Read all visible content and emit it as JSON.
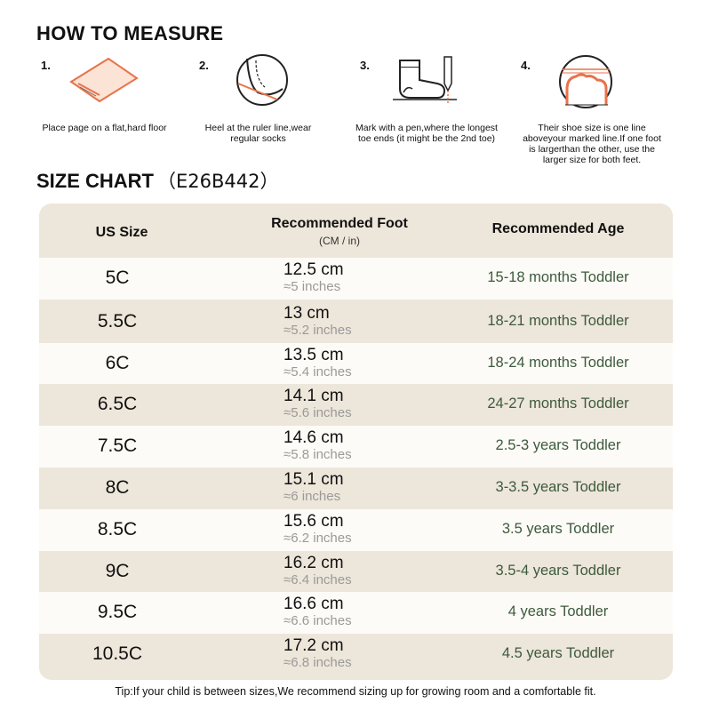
{
  "measure": {
    "title": "HOW TO MEASURE",
    "steps": [
      {
        "num": "1.",
        "text": "Place page on a flat,hard floor",
        "icon": "paper-sheet-icon"
      },
      {
        "num": "2.",
        "text": "Heel at the ruler line,wear regular socks",
        "icon": "heel-ruler-icon"
      },
      {
        "num": "3.",
        "text": "Mark with a pen,where the longest toe ends (it might be the 2nd toe)",
        "icon": "sock-pen-icon"
      },
      {
        "num": "4.",
        "text": "Their shoe size is one line aboveyour marked line.If one foot is largerthan the other, use the larger size for both feet.",
        "icon": "toe-line-icon"
      }
    ]
  },
  "chart": {
    "title": "SIZE CHART",
    "code": "（E26B442）"
  },
  "table": {
    "headers": {
      "size": "US Size",
      "foot": "Recommended Foot",
      "foot_sub": "(CM / in)",
      "age": "Recommended Age"
    },
    "rows": [
      {
        "size": "5C",
        "cm": "12.5 cm",
        "inch": "≈5 inches",
        "age": "15-18 months Toddler"
      },
      {
        "size": "5.5C",
        "cm": "13 cm",
        "inch": "≈5.2 inches",
        "age": "18-21 months Toddler"
      },
      {
        "size": "6C",
        "cm": "13.5 cm",
        "inch": "≈5.4 inches",
        "age": "18-24 months Toddler"
      },
      {
        "size": "6.5C",
        "cm": "14.1 cm",
        "inch": "≈5.6 inches",
        "age": "24-27 months Toddler"
      },
      {
        "size": "7.5C",
        "cm": "14.6 cm",
        "inch": "≈5.8 inches",
        "age": "2.5-3 years Toddler"
      },
      {
        "size": "8C",
        "cm": "15.1 cm",
        "inch": "≈6 inches",
        "age": "3-3.5 years Toddler"
      },
      {
        "size": "8.5C",
        "cm": "15.6 cm",
        "inch": "≈6.2 inches",
        "age": "3.5 years Toddler"
      },
      {
        "size": "9C",
        "cm": "16.2 cm",
        "inch": "≈6.4 inches",
        "age": "3.5-4 years Toddler"
      },
      {
        "size": "9.5C",
        "cm": "16.6 cm",
        "inch": "≈6.6 inches",
        "age": "4 years Toddler"
      },
      {
        "size": "10.5C",
        "cm": "17.2 cm",
        "inch": "≈6.8 inches",
        "age": "4.5 years Toddler"
      }
    ]
  },
  "tip": "Tip:If your child is between sizes,We recommend sizing up for growing room and a comfortable fit.",
  "colors": {
    "accent": "#e8734a",
    "table_bg": "#ede6da",
    "row_light": "#fdfbf7",
    "age_text": "#3c5a3c"
  }
}
